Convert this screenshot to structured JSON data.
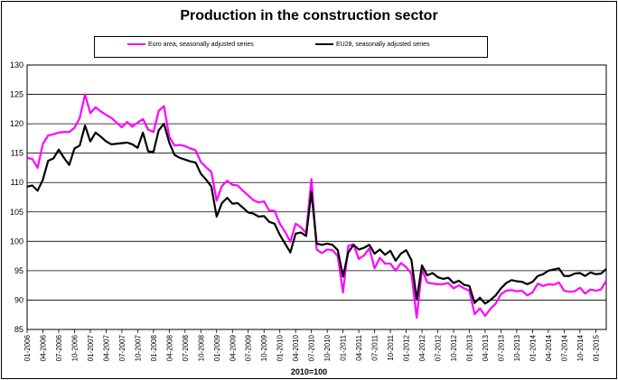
{
  "chart_data": {
    "type": "line",
    "title": "Production in the construction sector",
    "note": "2010=100",
    "ylim": [
      85,
      130
    ],
    "yticks": [
      85,
      90,
      95,
      100,
      105,
      110,
      115,
      120,
      125,
      130
    ],
    "xtick_labels": [
      "01-2006",
      "04-2006",
      "07-2006",
      "10-2006",
      "01-2007",
      "04-2007",
      "07-2007",
      "10-2007",
      "01-2008",
      "04-2008",
      "07-2008",
      "10-2008",
      "01-2009",
      "04-2009",
      "07-2009",
      "10-2009",
      "01-2010",
      "04-2010",
      "07-2010",
      "10-2010",
      "01-2011",
      "04-2011",
      "07-2011",
      "10-2011",
      "01-2012",
      "04-2012",
      "07-2012",
      "10-2012",
      "01-2013",
      "04-2013",
      "07-2013",
      "10-2013",
      "01-2014",
      "04-2014",
      "07-2014",
      "10-2014",
      "01-2015"
    ],
    "x_start": "01-2006",
    "frequency": "monthly",
    "series": [
      {
        "name": "Euro area, seasonally adjusted series",
        "color": "#ff00ff",
        "values": [
          114.2,
          114.0,
          112.5,
          116.6,
          118.0,
          118.2,
          118.5,
          118.6,
          118.6,
          119.3,
          121.0,
          125.0,
          121.8,
          122.8,
          122.1,
          121.5,
          121.0,
          120.2,
          119.4,
          120.3,
          119.5,
          120.2,
          120.8,
          119.0,
          118.6,
          122.2,
          123.0,
          117.8,
          116.3,
          116.4,
          116.2,
          115.8,
          115.5,
          113.5,
          112.6,
          111.8,
          106.9,
          109.4,
          110.3,
          109.6,
          109.5,
          108.6,
          107.8,
          107.0,
          106.6,
          106.8,
          105.2,
          105.2,
          103.0,
          101.6,
          99.9,
          103.0,
          102.4,
          101.4,
          110.6,
          98.6,
          98.0,
          98.6,
          98.5,
          97.5,
          91.3,
          99.2,
          99.5,
          97.0,
          97.6,
          98.8,
          95.4,
          97.2,
          96.2,
          96.2,
          95.0,
          96.3,
          95.6,
          94.5,
          87.0,
          95.2,
          93.0,
          92.8,
          92.7,
          92.7,
          92.9,
          92.0,
          92.5,
          92.0,
          91.6,
          87.6,
          88.6,
          87.3,
          88.5,
          89.4,
          91.0,
          91.6,
          91.7,
          91.5,
          91.6,
          90.8,
          91.3,
          92.8,
          92.4,
          92.7,
          92.6,
          93.0,
          91.6,
          91.4,
          91.5,
          92.1,
          91.1,
          91.8,
          91.6,
          91.8,
          93.3
        ]
      },
      {
        "name": "EU28, seasonally adjusted series",
        "color": "#000000",
        "values": [
          109.3,
          109.5,
          108.6,
          110.5,
          113.7,
          114.1,
          115.6,
          114.2,
          113.0,
          115.8,
          116.3,
          119.7,
          117.0,
          118.5,
          117.8,
          117.0,
          116.5,
          116.6,
          116.7,
          116.8,
          116.5,
          115.9,
          118.5,
          115.3,
          115.2,
          118.9,
          120.0,
          116.8,
          114.7,
          114.2,
          113.9,
          113.6,
          113.4,
          111.5,
          110.5,
          109.3,
          104.2,
          106.5,
          107.4,
          106.4,
          106.5,
          105.7,
          104.9,
          104.7,
          104.2,
          104.3,
          103.3,
          103.0,
          101.1,
          99.6,
          98.1,
          101.3,
          101.5,
          100.9,
          108.4,
          99.6,
          99.4,
          99.6,
          99.4,
          98.5,
          94.0,
          98.1,
          99.4,
          98.6,
          98.9,
          99.4,
          97.9,
          98.6,
          97.7,
          98.4,
          96.7,
          97.9,
          98.5,
          96.8,
          90.1,
          95.9,
          94.2,
          94.6,
          93.9,
          93.6,
          93.8,
          92.9,
          93.3,
          92.6,
          92.4,
          89.5,
          90.4,
          89.4,
          90.0,
          90.8,
          92.0,
          92.9,
          93.4,
          93.2,
          93.1,
          92.7,
          93.1,
          94.1,
          94.4,
          95.0,
          95.2,
          95.4,
          94.1,
          94.1,
          94.5,
          94.6,
          94.1,
          94.7,
          94.4,
          94.5,
          95.3
        ]
      }
    ]
  }
}
